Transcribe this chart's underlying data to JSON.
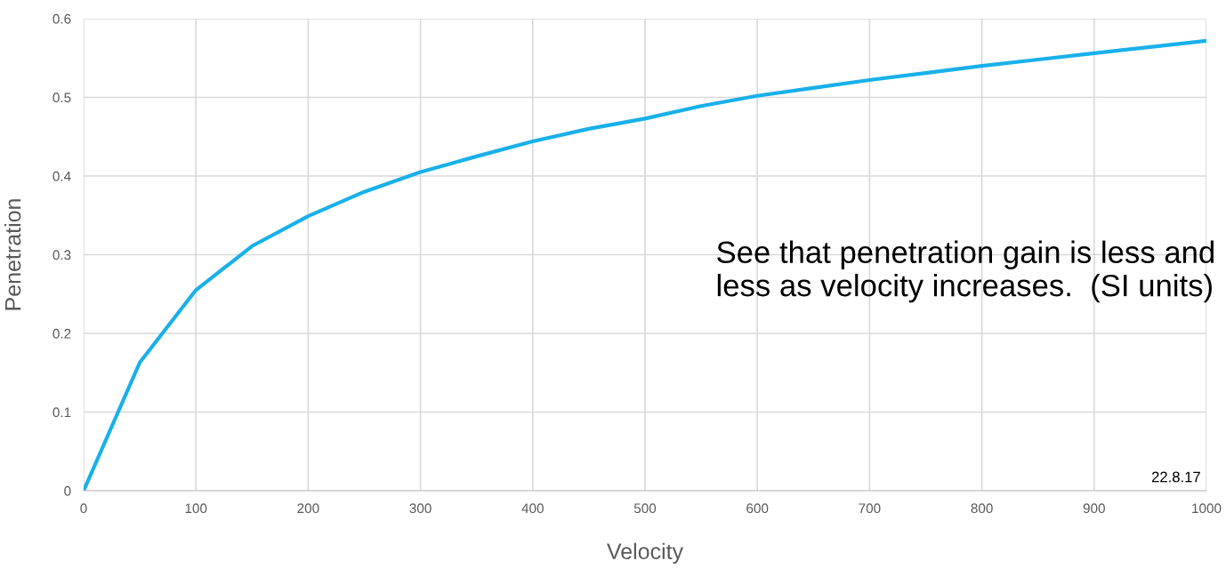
{
  "chart_data": {
    "type": "line",
    "xlabel": "Velocity",
    "ylabel": "Penetration",
    "x": [
      0,
      50,
      100,
      150,
      200,
      250,
      300,
      350,
      400,
      450,
      500,
      550,
      600,
      650,
      700,
      750,
      800,
      850,
      900,
      950,
      1000
    ],
    "series": [
      {
        "color": "#18b0ea",
        "values": [
          0,
          0.163,
          0.255,
          0.311,
          0.349,
          0.38,
          0.405,
          0.425,
          0.444,
          0.46,
          0.473,
          0.489,
          0.502,
          0.512,
          0.522,
          0.531,
          0.54,
          0.548,
          0.556,
          0.564,
          0.572
        ]
      }
    ],
    "xlim": [
      0,
      1000
    ],
    "xticks": [
      0,
      100,
      200,
      300,
      400,
      500,
      600,
      700,
      800,
      900,
      1000
    ],
    "ylim": [
      0,
      0.6
    ],
    "yticks": [
      0,
      0.1,
      0.2,
      0.3,
      0.4,
      0.5,
      0.6
    ],
    "grid": true,
    "marker": "none",
    "line_style": "solid",
    "legend": false,
    "annotations": [
      "See that penetration gain is less and less as velocity increases.  (SI units)",
      "22.8.17"
    ]
  }
}
